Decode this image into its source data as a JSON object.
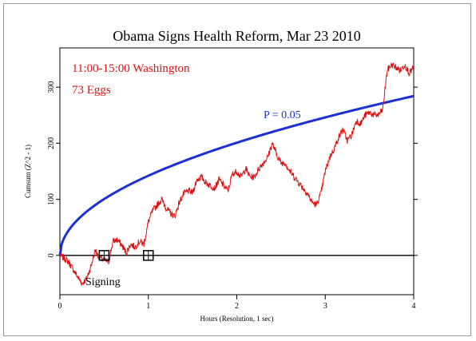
{
  "chart_data": {
    "type": "line",
    "title": "Obama Signs Health Reform, Mar 23 2010",
    "xlabel": "Hours (Resolution, 1 sec)",
    "ylabel": "Cumsum (Z^2 - 1)",
    "xlim": [
      0,
      4
    ],
    "ylim": [
      -70,
      370
    ],
    "xticks": [
      0,
      1,
      2,
      3,
      4
    ],
    "yticks": [
      0,
      100,
      200,
      300
    ],
    "annotations": {
      "time_window": "11:00-15:00 Washington",
      "eggs": "73 Eggs",
      "p_label": "P = 0.05",
      "event_label": "Signing"
    },
    "event_markers": [
      {
        "x": 0.5,
        "y": 0
      },
      {
        "x": 1.0,
        "y": 0
      }
    ],
    "series": [
      {
        "type": "cumsum",
        "color": "#e01010",
        "x": [
          0,
          0.05,
          0.1,
          0.15,
          0.2,
          0.25,
          0.3,
          0.35,
          0.4,
          0.45,
          0.5,
          0.55,
          0.6,
          0.65,
          0.7,
          0.75,
          0.8,
          0.85,
          0.9,
          0.95,
          1.0,
          1.05,
          1.1,
          1.15,
          1.2,
          1.25,
          1.3,
          1.35,
          1.4,
          1.45,
          1.5,
          1.55,
          1.6,
          1.65,
          1.7,
          1.75,
          1.8,
          1.85,
          1.9,
          1.95,
          2.0,
          2.05,
          2.1,
          2.15,
          2.2,
          2.25,
          2.3,
          2.35,
          2.4,
          2.45,
          2.5,
          2.55,
          2.6,
          2.65,
          2.7,
          2.75,
          2.8,
          2.85,
          2.9,
          2.95,
          3.0,
          3.05,
          3.1,
          3.15,
          3.2,
          3.25,
          3.3,
          3.35,
          3.4,
          3.45,
          3.5,
          3.55,
          3.6,
          3.65,
          3.7,
          3.75,
          3.8,
          3.85,
          3.9,
          3.95,
          4.0
        ],
        "values": [
          0,
          -5,
          -12,
          -25,
          -38,
          -50,
          -42,
          -20,
          10,
          -5,
          -8,
          -12,
          25,
          28,
          18,
          5,
          20,
          15,
          25,
          20,
          60,
          80,
          90,
          100,
          85,
          75,
          70,
          95,
          110,
          115,
          112,
          135,
          140,
          130,
          125,
          120,
          135,
          125,
          115,
          145,
          150,
          140,
          155,
          140,
          140,
          155,
          165,
          175,
          200,
          180,
          165,
          165,
          150,
          140,
          130,
          120,
          110,
          95,
          90,
          110,
          150,
          175,
          190,
          210,
          225,
          205,
          215,
          240,
          235,
          250,
          255,
          250,
          250,
          260,
          330,
          340,
          335,
          330,
          340,
          325,
          335
        ]
      },
      {
        "type": "envelope",
        "name": "P = 0.05",
        "color": "#1a2fd6",
        "formula": "1.96 * sqrt(2 * 73 * seconds)"
      },
      {
        "type": "baseline",
        "color": "#000000",
        "value": 0
      }
    ]
  }
}
